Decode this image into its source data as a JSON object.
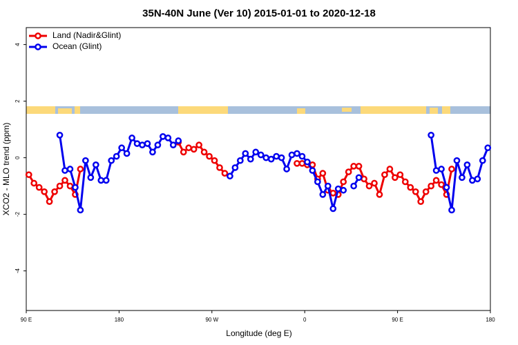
{
  "chart_data": {
    "type": "line",
    "title": "35N-40N June (Ver 10)   2015-01-01 to 2020-12-18",
    "xlabel": "Longitude (deg E)",
    "ylabel": "XCO2 - MLO trend (ppm)",
    "legend": "top-left",
    "xlim": [
      90,
      540
    ],
    "ylim": [
      -5.4,
      4.6
    ],
    "xticks": [
      {
        "value": 90,
        "label": "90 E"
      },
      180,
      {
        "value": 270,
        "label": "90 W"
      },
      {
        "value": 360,
        "label": "0"
      },
      {
        "value": 450,
        "label": "90 E"
      },
      {
        "value": 540,
        "label": "180"
      }
    ],
    "yticks": [
      -4,
      -2,
      0,
      2,
      4
    ],
    "x": [
      92.5,
      97.5,
      102.5,
      107.5,
      112.5,
      117.5,
      122.5,
      127.5,
      132.5,
      137.5,
      142.5,
      147.5,
      152.5,
      157.5,
      162.5,
      167.5,
      172.5,
      177.5,
      182.5,
      187.5,
      192.5,
      197.5,
      202.5,
      207.5,
      212.5,
      217.5,
      222.5,
      227.5,
      232.5,
      237.5,
      242.5,
      247.5,
      252.5,
      257.5,
      262.5,
      267.5,
      272.5,
      277.5,
      282.5,
      287.5,
      292.5,
      297.5,
      302.5,
      307.5,
      312.5,
      317.5,
      322.5,
      327.5,
      332.5,
      337.5,
      342.5,
      347.5,
      352.5,
      357.5,
      362.5,
      367.5,
      372.5,
      377.5,
      382.5,
      387.5,
      392.5,
      397.5,
      402.5,
      407.5,
      412.5,
      417.5,
      422.5,
      427.5,
      432.5,
      437.5,
      442.5,
      447.5,
      452.5,
      457.5,
      462.5,
      467.5,
      472.5,
      477.5,
      482.5,
      487.5,
      492.5,
      497.5,
      502.5,
      507.5,
      512.5,
      517.5,
      522.5,
      527.5,
      532.5,
      537.5
    ],
    "series": [
      {
        "name": "Land (Nadir&Glint)",
        "color": "#ee0000",
        "values": [
          -0.6,
          -0.9,
          -1.05,
          -1.2,
          -1.55,
          -1.2,
          -1.0,
          -0.8,
          -1.0,
          -1.3,
          -0.4,
          null,
          null,
          null,
          null,
          null,
          null,
          null,
          null,
          null,
          null,
          null,
          null,
          null,
          null,
          null,
          null,
          null,
          null,
          0.55,
          0.2,
          0.35,
          0.3,
          0.45,
          0.2,
          0.05,
          -0.1,
          -0.35,
          -0.55,
          null,
          null,
          null,
          null,
          null,
          null,
          null,
          null,
          null,
          null,
          null,
          null,
          null,
          -0.2,
          -0.2,
          -0.25,
          -0.25,
          -0.75,
          -0.55,
          -1.15,
          -1.25,
          -1.3,
          -0.85,
          -0.5,
          -0.3,
          -0.3,
          -0.75,
          -1.0,
          -0.9,
          -1.3,
          -0.6,
          -0.4,
          -0.7,
          -0.6,
          -0.85,
          -1.05,
          -1.2,
          -1.55,
          -1.2,
          -1.0,
          -0.8,
          -0.95,
          -1.3,
          -0.4,
          null,
          null,
          null,
          null,
          null,
          null,
          null
        ]
      },
      {
        "name": "Ocean (Glint)",
        "color": "#0000ee",
        "values": [
          null,
          null,
          null,
          null,
          null,
          null,
          0.8,
          -0.45,
          -0.4,
          -1.05,
          -1.85,
          -0.1,
          -0.7,
          -0.25,
          -0.8,
          -0.8,
          -0.1,
          0.05,
          0.35,
          0.15,
          0.7,
          0.5,
          0.45,
          0.5,
          0.2,
          0.45,
          0.75,
          0.7,
          0.45,
          0.6,
          null,
          null,
          null,
          null,
          null,
          null,
          null,
          null,
          null,
          -0.65,
          -0.35,
          -0.1,
          0.15,
          -0.05,
          0.2,
          0.1,
          0.0,
          -0.05,
          0.05,
          0.0,
          -0.4,
          0.1,
          0.15,
          0.05,
          -0.15,
          -0.45,
          -0.85,
          -1.3,
          -1.0,
          -1.8,
          -1.1,
          -1.15,
          null,
          -1.0,
          -0.7,
          null,
          null,
          null,
          null,
          null,
          null,
          null,
          null,
          null,
          null,
          null,
          null,
          null,
          0.8,
          -0.45,
          -0.4,
          -1.05,
          -1.85,
          -0.1,
          -0.7,
          -0.25,
          -0.8,
          -0.75,
          -0.1,
          0.35
        ]
      }
    ]
  }
}
